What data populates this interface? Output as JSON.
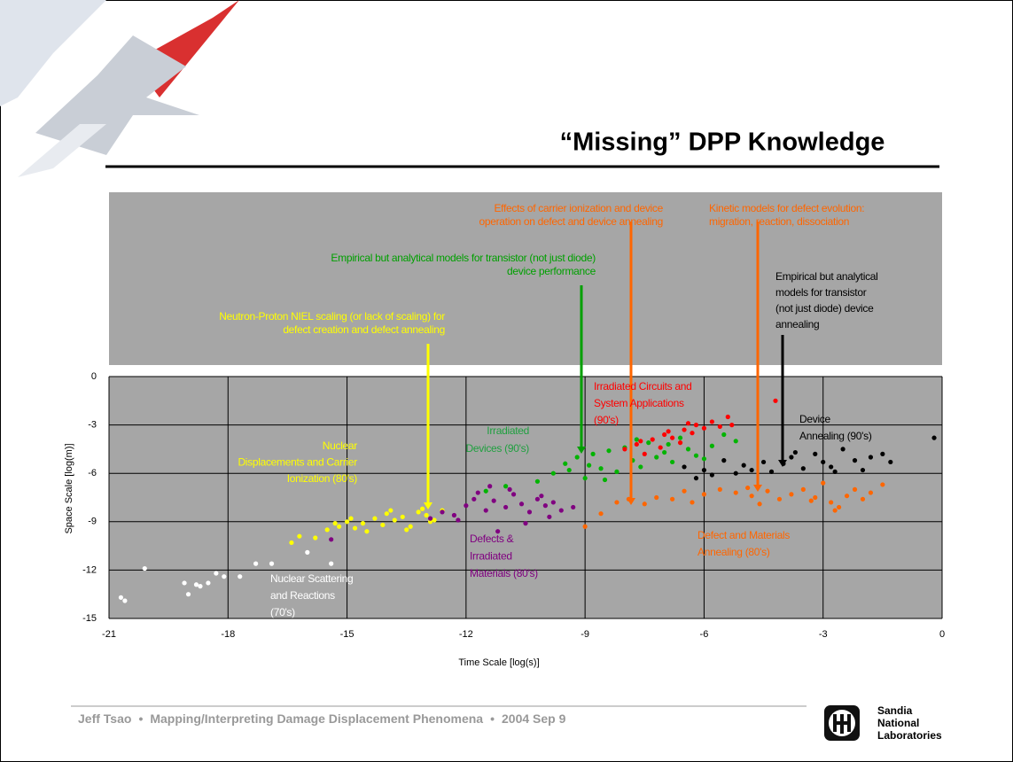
{
  "title": "“Missing” DPP Knowledge",
  "footer": {
    "author": "Jeff Tsao",
    "topic": "Mapping/Interpreting Damage Displacement Phenomena",
    "date": "2004 Sep 9"
  },
  "logo": [
    "Sandia",
    "National",
    "Laboratories"
  ],
  "chart_data": {
    "type": "scatter",
    "xlabel": "Time Scale [log(s)]",
    "ylabel": "Space Scale [log(m)]",
    "xlim": [
      -21,
      0
    ],
    "ylim": [
      -15,
      0
    ],
    "xticks": [
      -21,
      -18,
      -15,
      -12,
      -9,
      -6,
      -3,
      0
    ],
    "yticks": [
      -15,
      -12,
      -9,
      -6,
      -3,
      0
    ],
    "grid": true,
    "series": [
      {
        "color": "#ffffff",
        "x": [
          -20.7,
          -20.6,
          -20.1,
          -19.1,
          -19.0,
          -18.8,
          -18.7,
          -18.5,
          -18.3,
          -18.1,
          -17.7,
          -17.3,
          -16.9,
          -16.0,
          -15.4
        ],
        "values": [
          -13.7,
          -13.9,
          -11.9,
          -12.8,
          -13.5,
          -12.9,
          -13.0,
          -12.8,
          -12.2,
          -12.4,
          -12.4,
          -11.6,
          -11.6,
          -10.9,
          -11.6
        ]
      },
      {
        "color": "#ffff00",
        "x": [
          -16.4,
          -16.2,
          -15.8,
          -15.5,
          -15.2,
          -15.0,
          -14.8,
          -14.6,
          -14.3,
          -14.1,
          -14.0,
          -13.8,
          -13.6,
          -13.4,
          -13.2,
          -13.0,
          -12.8,
          -12.6,
          -14.5,
          -13.9,
          -15.3,
          -13.5,
          -14.9,
          -13.1,
          -12.9
        ],
        "values": [
          -10.3,
          -9.9,
          -10.0,
          -9.5,
          -9.3,
          -9.0,
          -9.4,
          -9.1,
          -8.8,
          -9.2,
          -8.5,
          -8.9,
          -8.7,
          -9.3,
          -8.4,
          -8.6,
          -8.9,
          -8.3,
          -9.6,
          -8.3,
          -9.1,
          -9.5,
          -8.8,
          -8.2,
          -9.0
        ]
      },
      {
        "color": "#800080",
        "x": [
          -12.9,
          -12.6,
          -12.3,
          -12.0,
          -11.8,
          -11.5,
          -11.3,
          -11.0,
          -10.8,
          -10.6,
          -10.4,
          -10.2,
          -10.0,
          -9.8,
          -9.6,
          -11.7,
          -11.2,
          -10.9,
          -10.5,
          -10.1,
          -9.9,
          -11.4,
          -12.2,
          -15.4,
          -9.3
        ],
        "values": [
          -8.8,
          -8.4,
          -8.6,
          -8.0,
          -7.6,
          -8.3,
          -7.7,
          -8.1,
          -7.3,
          -7.9,
          -8.4,
          -7.6,
          -8.0,
          -7.8,
          -8.3,
          -7.2,
          -9.6,
          -7.0,
          -9.1,
          -7.4,
          -8.7,
          -6.8,
          -8.9,
          -10.1,
          -8.1
        ]
      },
      {
        "color": "#00b400",
        "x": [
          -11.5,
          -11.0,
          -10.2,
          -9.8,
          -9.5,
          -9.2,
          -9.0,
          -8.8,
          -8.6,
          -8.4,
          -8.2,
          -8.0,
          -7.8,
          -7.6,
          -7.4,
          -7.2,
          -7.0,
          -6.8,
          -6.6,
          -6.4,
          -6.2,
          -6.0,
          -5.8,
          -5.5,
          -5.2,
          -8.9,
          -8.5,
          -7.7,
          -9.4,
          -6.9
        ],
        "values": [
          -7.1,
          -6.8,
          -6.5,
          -6.0,
          -5.4,
          -5.0,
          -6.3,
          -4.8,
          -5.7,
          -4.6,
          -5.9,
          -4.4,
          -5.2,
          -5.6,
          -4.1,
          -5.0,
          -4.7,
          -5.3,
          -3.8,
          -4.5,
          -4.9,
          -5.1,
          -4.3,
          -3.6,
          -4.0,
          -5.5,
          -6.4,
          -3.9,
          -5.8,
          -4.2
        ]
      },
      {
        "color": "#ff0000",
        "x": [
          -8.0,
          -7.7,
          -7.5,
          -7.3,
          -7.1,
          -7.0,
          -6.8,
          -6.6,
          -6.5,
          -6.3,
          -6.2,
          -6.0,
          -5.8,
          -5.6,
          -5.4,
          -5.3,
          -4.2,
          -7.6,
          -6.9,
          -6.4
        ],
        "values": [
          -4.5,
          -4.2,
          -4.8,
          -3.9,
          -4.4,
          -3.6,
          -3.8,
          -4.1,
          -3.3,
          -3.5,
          -3.0,
          -3.2,
          -2.8,
          -3.1,
          -2.5,
          -3.0,
          -1.5,
          -4.0,
          -3.4,
          -2.9
        ]
      },
      {
        "color": "#000000",
        "x": [
          -6.5,
          -6.2,
          -6.0,
          -5.8,
          -5.5,
          -5.2,
          -5.0,
          -4.8,
          -4.5,
          -4.3,
          -4.0,
          -3.8,
          -3.5,
          -3.2,
          -3.0,
          -2.8,
          -2.5,
          -2.2,
          -2.0,
          -1.8,
          -1.5,
          -1.3,
          -0.2,
          -3.7,
          -2.7
        ],
        "values": [
          -5.6,
          -6.3,
          -5.8,
          -6.1,
          -5.2,
          -6.0,
          -5.5,
          -5.8,
          -5.3,
          -5.9,
          -5.4,
          -5.0,
          -5.7,
          -4.8,
          -5.3,
          -5.6,
          -4.5,
          -5.2,
          -5.8,
          -5.0,
          -4.8,
          -5.3,
          -3.8,
          -4.7,
          -5.9
        ]
      },
      {
        "color": "#ff6600",
        "x": [
          -9.0,
          -8.6,
          -8.2,
          -7.9,
          -7.5,
          -7.2,
          -6.8,
          -6.5,
          -6.0,
          -5.6,
          -5.2,
          -4.8,
          -4.6,
          -4.4,
          -4.1,
          -3.8,
          -3.5,
          -3.2,
          -3.0,
          -2.8,
          -2.6,
          -2.4,
          -2.2,
          -2.0,
          -1.8,
          -1.5,
          -4.9,
          -3.3,
          -2.7,
          -6.3
        ],
        "values": [
          -9.3,
          -8.5,
          -7.8,
          -7.6,
          -7.9,
          -7.5,
          -7.6,
          -7.1,
          -7.3,
          -7.0,
          -7.2,
          -7.4,
          -7.9,
          -7.1,
          -7.6,
          -7.3,
          -7.0,
          -7.5,
          -6.6,
          -7.8,
          -8.1,
          -7.4,
          -7.0,
          -7.6,
          -7.2,
          -6.7,
          -6.9,
          -7.7,
          -8.3,
          -7.8
        ]
      }
    ],
    "annotations": [
      {
        "color": "#ff6600",
        "lines": [
          "Effects of carrier ionization and device",
          "operation on defect and device annealing"
        ]
      },
      {
        "color": "#ff6600",
        "lines": [
          "Kinetic models for defect evolution:",
          "migration, reaction, dissociation"
        ]
      },
      {
        "color": "#00a000",
        "lines": [
          "Empirical but analytical models for transistor (not just diode)",
          "device performance"
        ]
      },
      {
        "color": "#000000",
        "lines": [
          "Empirical but analytical",
          "models for transistor",
          "(not just diode) device",
          "annealing"
        ]
      },
      {
        "color": "#ffff00",
        "lines": [
          "Neutron-Proton NIEL scaling (or lack of scaling) for",
          "defect creation and defect annealing"
        ]
      },
      {
        "color": "#ff0000",
        "lines": [
          "Irradiated Circuits and",
          "System Applications",
          "(90's)"
        ]
      },
      {
        "color": "#000000",
        "lines": [
          "Device",
          "Annealing (90's)"
        ]
      },
      {
        "color": "#20a040",
        "lines": [
          "Irradiated",
          "Devices (90's)"
        ]
      },
      {
        "color": "#ffff00",
        "lines": [
          "Nuclear",
          "Displacements and Carrier",
          "Ionization (80's)"
        ]
      },
      {
        "color": "#800080",
        "lines": [
          "Defects &",
          "Irradiated",
          "Materials (80's)"
        ]
      },
      {
        "color": "#ff6600",
        "lines": [
          "Defect and Materials",
          "Annealing (80's)"
        ]
      },
      {
        "color": "#ffffff",
        "lines": [
          "Nuclear Scattering",
          "and Reactions",
          "(70's)"
        ]
      }
    ]
  }
}
